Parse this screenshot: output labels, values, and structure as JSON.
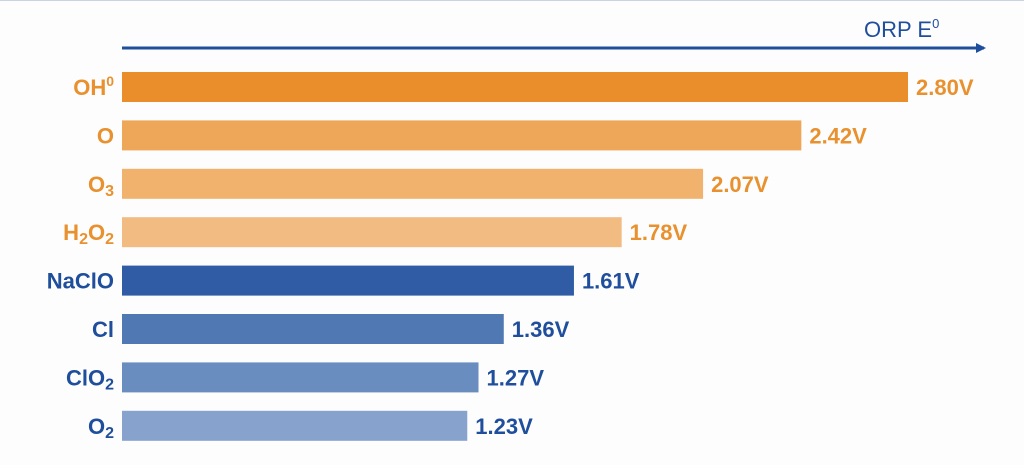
{
  "chart_data": {
    "type": "bar",
    "orientation": "horizontal",
    "title": "",
    "axis_title": "ORP E",
    "axis_title_superscript": "0",
    "categories": [
      {
        "base": "OH",
        "sup": "0",
        "sub": ""
      },
      {
        "base": "O",
        "sup": "",
        "sub": ""
      },
      {
        "base": "O",
        "sup": "",
        "sub": "3"
      },
      {
        "base": "H2O2",
        "sup": "",
        "sub": ""
      },
      {
        "base": "NaClO",
        "sup": "",
        "sub": ""
      },
      {
        "base": "Cl",
        "sup": "",
        "sub": ""
      },
      {
        "base": "ClO",
        "sup": "",
        "sub": "2"
      },
      {
        "base": "O",
        "sup": "",
        "sub": "2"
      }
    ],
    "values": [
      2.8,
      2.42,
      2.07,
      1.78,
      1.61,
      1.36,
      1.27,
      1.23
    ],
    "value_labels": [
      "2.80V",
      "2.42V",
      "2.07V",
      "1.78V",
      "1.61V",
      "1.36V",
      "1.27V",
      "1.23V"
    ],
    "unit": "V",
    "xlim": [
      0,
      2.8
    ],
    "grid": false,
    "colors": [
      "#ea8e2b",
      "#eea758",
      "#f0b26d",
      "#f2bb82",
      "#2f5ca4",
      "#5078b3",
      "#6a8dc0",
      "#86a2cd"
    ],
    "label_colors": [
      "#e8912e",
      "#e8912e",
      "#e8912e",
      "#e8912e",
      "#1f4e9c",
      "#1f4e9c",
      "#1f4e9c",
      "#1f4e9c"
    ]
  }
}
